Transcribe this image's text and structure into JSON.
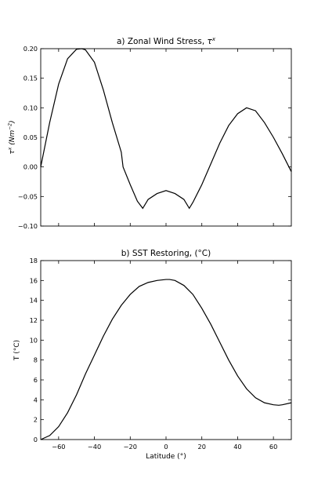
{
  "chart_data": [
    {
      "type": "line",
      "title_prefix": "a) Zonal Wind Stress,",
      "title_symbol": "τ",
      "title_symbol_sup": "x",
      "ylabel_symbol": "τ",
      "ylabel_symbol_sup": "x",
      "ylabel_unit_prefix": "(Nm",
      "ylabel_unit_sup": "−2",
      "ylabel_unit_suffix": ")",
      "xlim": [
        -70,
        70
      ],
      "ylim": [
        -0.1,
        0.2
      ],
      "yticks": [
        "0.20",
        "0.15",
        "0.10",
        "0.05",
        "0.00",
        "−0.05",
        "−0.10"
      ],
      "yticks_values": [
        0.2,
        0.15,
        0.1,
        0.05,
        0.0,
        -0.05,
        -0.1
      ],
      "xticks_values": [
        -60,
        -40,
        -20,
        0,
        20,
        40,
        60
      ],
      "grid": false,
      "series": [
        {
          "x": [
            -70,
            -65,
            -60,
            -55,
            -50,
            -47,
            -45,
            -40,
            -35,
            -30,
            -25,
            -24,
            -20,
            -16,
            -13,
            -10,
            -5,
            0,
            5,
            10,
            13,
            15,
            20,
            25,
            30,
            35,
            40,
            45,
            50,
            55,
            60,
            65,
            70
          ],
          "y": [
            0.0,
            0.075,
            0.14,
            0.183,
            0.199,
            0.2,
            0.198,
            0.177,
            0.13,
            0.075,
            0.025,
            0.0,
            -0.03,
            -0.058,
            -0.07,
            -0.055,
            -0.045,
            -0.04,
            -0.045,
            -0.055,
            -0.07,
            -0.06,
            -0.03,
            0.005,
            0.04,
            0.07,
            0.09,
            0.1,
            0.095,
            0.075,
            0.05,
            0.022,
            -0.008
          ]
        }
      ]
    },
    {
      "type": "line",
      "title": "b) SST Restoring, (°C)",
      "xlabel": "Latitude (°)",
      "ylabel": "T (°C)",
      "xlim": [
        -70,
        70
      ],
      "ylim": [
        0,
        18
      ],
      "yticks": [
        "18",
        "16",
        "14",
        "12",
        "10",
        "8",
        "6",
        "4",
        "2",
        "0"
      ],
      "yticks_values": [
        18,
        16,
        14,
        12,
        10,
        8,
        6,
        4,
        2,
        0
      ],
      "xticks": [
        "−60",
        "−40",
        "−20",
        "0",
        "20",
        "40",
        "60"
      ],
      "xticks_values": [
        -60,
        -40,
        -20,
        0,
        20,
        40,
        60
      ],
      "grid": false,
      "series": [
        {
          "x": [
            -70,
            -65,
            -60,
            -55,
            -50,
            -45,
            -40,
            -35,
            -30,
            -25,
            -20,
            -15,
            -10,
            -5,
            0,
            2,
            5,
            10,
            15,
            20,
            25,
            30,
            35,
            40,
            45,
            50,
            55,
            60,
            63,
            65,
            70
          ],
          "y": [
            0.0,
            0.4,
            1.3,
            2.7,
            4.5,
            6.6,
            8.5,
            10.4,
            12.1,
            13.5,
            14.6,
            15.4,
            15.8,
            16.0,
            16.1,
            16.1,
            16.0,
            15.5,
            14.6,
            13.2,
            11.6,
            9.8,
            8.0,
            6.4,
            5.1,
            4.2,
            3.7,
            3.5,
            3.45,
            3.5,
            3.7
          ]
        }
      ]
    }
  ]
}
